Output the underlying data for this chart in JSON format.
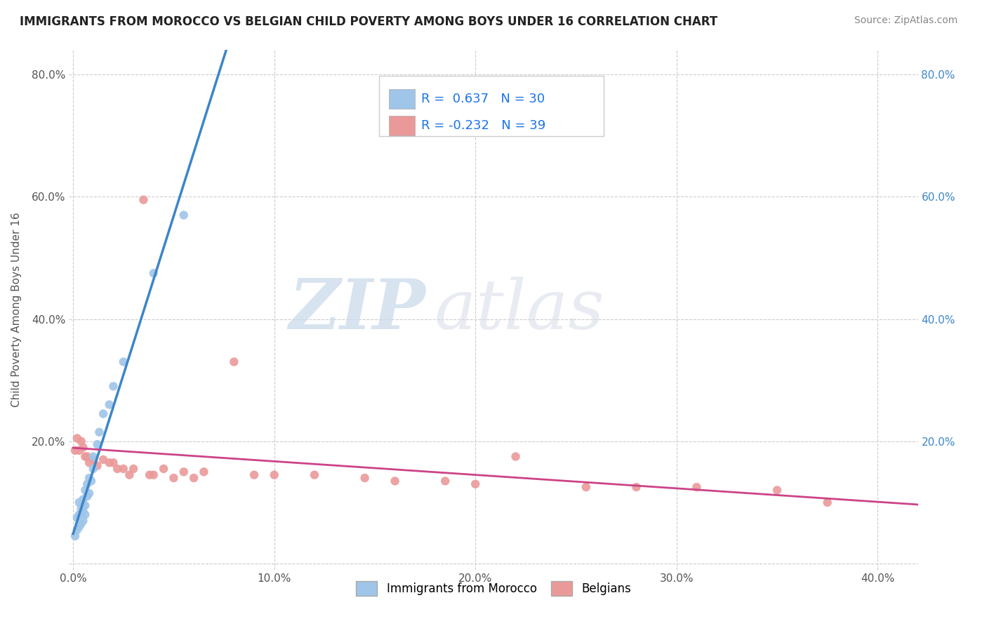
{
  "title": "IMMIGRANTS FROM MOROCCO VS BELGIAN CHILD POVERTY AMONG BOYS UNDER 16 CORRELATION CHART",
  "source": "Source: ZipAtlas.com",
  "ylabel": "Child Poverty Among Boys Under 16",
  "legend_bottom": [
    "Immigrants from Morocco",
    "Belgians"
  ],
  "r_blue": 0.637,
  "n_blue": 30,
  "r_pink": -0.232,
  "n_pink": 39,
  "xlim": [
    -0.002,
    0.42
  ],
  "ylim": [
    -0.01,
    0.84
  ],
  "xticks": [
    0.0,
    0.1,
    0.2,
    0.3,
    0.4
  ],
  "yticks": [
    0.0,
    0.2,
    0.4,
    0.6,
    0.8
  ],
  "xtick_labels": [
    "0.0%",
    "10.0%",
    "20.0%",
    "30.0%",
    "40.0%"
  ],
  "ytick_labels": [
    "",
    "20.0%",
    "40.0%",
    "60.0%",
    "80.0%"
  ],
  "right_ytick_labels": [
    "",
    "20.0%",
    "40.0%",
    "60.0%",
    "80.0%"
  ],
  "blue_color": "#9fc5e8",
  "pink_color": "#ea9999",
  "blue_line_color": "#3d85c8",
  "pink_line_color": "#cc4488",
  "dash_line_color": "#aaaaaa",
  "grid_color": "#cccccc",
  "background_color": "#ffffff",
  "right_tick_color": "#3d85c8",
  "watermark_zip": "ZIP",
  "watermark_atlas": "atlas",
  "blue_scatter_x": [
    0.001,
    0.002,
    0.002,
    0.003,
    0.003,
    0.003,
    0.004,
    0.004,
    0.005,
    0.005,
    0.005,
    0.005,
    0.006,
    0.006,
    0.006,
    0.007,
    0.007,
    0.008,
    0.008,
    0.009,
    0.01,
    0.01,
    0.012,
    0.013,
    0.015,
    0.018,
    0.02,
    0.025,
    0.04,
    0.055
  ],
  "blue_scatter_y": [
    0.045,
    0.055,
    0.075,
    0.06,
    0.08,
    0.1,
    0.065,
    0.09,
    0.07,
    0.085,
    0.095,
    0.105,
    0.08,
    0.095,
    0.12,
    0.11,
    0.13,
    0.115,
    0.14,
    0.135,
    0.155,
    0.175,
    0.195,
    0.215,
    0.245,
    0.26,
    0.29,
    0.33,
    0.475,
    0.57
  ],
  "pink_scatter_x": [
    0.001,
    0.002,
    0.003,
    0.004,
    0.005,
    0.006,
    0.007,
    0.008,
    0.01,
    0.012,
    0.015,
    0.018,
    0.02,
    0.022,
    0.025,
    0.028,
    0.03,
    0.035,
    0.038,
    0.04,
    0.045,
    0.05,
    0.055,
    0.06,
    0.065,
    0.08,
    0.09,
    0.1,
    0.12,
    0.145,
    0.16,
    0.185,
    0.2,
    0.22,
    0.255,
    0.28,
    0.31,
    0.35,
    0.375
  ],
  "pink_scatter_y": [
    0.185,
    0.205,
    0.185,
    0.2,
    0.19,
    0.175,
    0.175,
    0.165,
    0.17,
    0.16,
    0.17,
    0.165,
    0.165,
    0.155,
    0.155,
    0.145,
    0.155,
    0.595,
    0.145,
    0.145,
    0.155,
    0.14,
    0.15,
    0.14,
    0.15,
    0.33,
    0.145,
    0.145,
    0.145,
    0.14,
    0.135,
    0.135,
    0.13,
    0.175,
    0.125,
    0.125,
    0.125,
    0.12,
    0.1
  ]
}
